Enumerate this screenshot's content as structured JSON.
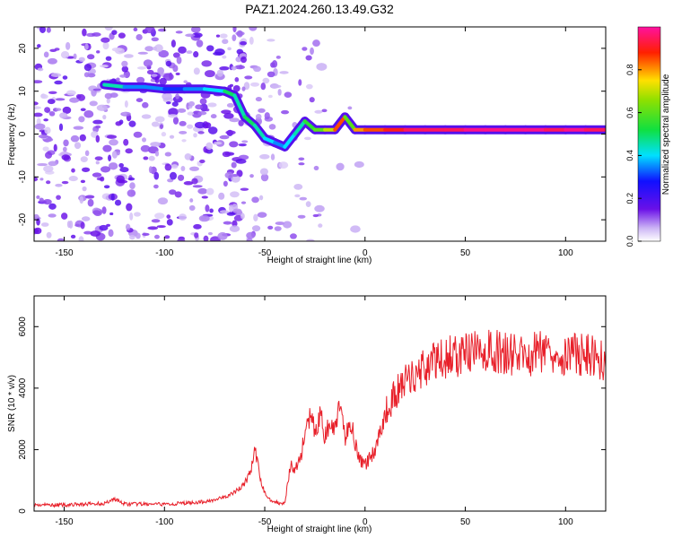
{
  "title": "PAZ1.2024.260.13.49.G32",
  "chart_data": [
    {
      "type": "heatmap",
      "title": "PAZ1.2024.260.13.49.G32",
      "xlabel": "Height of straight line (km)",
      "ylabel": "Frequency (Hz)",
      "xlim": [
        -165,
        120
      ],
      "ylim": [
        -25,
        25
      ],
      "x_ticks": [
        "-150",
        "-100",
        "-50",
        "0",
        "50",
        "100"
      ],
      "y_ticks": [
        "-20",
        "-10",
        "0",
        "10",
        "20"
      ],
      "colorbar": {
        "label": "Normalized spectral amplitude",
        "range": [
          0,
          1
        ],
        "ticks": [
          "0.0",
          "0.2",
          "0.4",
          "0.6",
          "0.8"
        ]
      },
      "ridge": {
        "x": [
          -130,
          -120,
          -110,
          -100,
          -90,
          -80,
          -70,
          -65,
          -60,
          -55,
          -50,
          -45,
          -40,
          -35,
          -30,
          -25,
          -20,
          -15,
          -10,
          -5,
          0,
          10,
          20,
          30,
          40,
          50,
          60,
          70,
          80,
          90,
          100,
          110,
          120
        ],
        "y": [
          11.5,
          11,
          11,
          10.5,
          10.5,
          10.5,
          10,
          9,
          4,
          2,
          -1,
          -2,
          -3,
          0,
          3,
          1,
          1,
          1,
          4,
          1,
          1,
          1,
          1,
          1,
          1,
          1,
          1,
          1,
          1,
          1,
          1,
          1,
          1
        ],
        "amplitude": [
          0.45,
          0.35,
          0.35,
          0.3,
          0.35,
          0.4,
          0.5,
          0.45,
          0.5,
          0.45,
          0.4,
          0.35,
          0.4,
          0.45,
          0.55,
          0.6,
          0.7,
          0.85,
          0.6,
          0.8,
          0.85,
          0.9,
          0.95,
          0.95,
          0.95,
          0.98,
          0.98,
          0.98,
          0.98,
          0.95,
          0.98,
          0.95,
          0.9
        ]
      }
    },
    {
      "type": "line",
      "xlabel": "Height of straight line (km)",
      "ylabel": "SNR (10 * v/v)",
      "xlim": [
        -165,
        120
      ],
      "ylim": [
        0,
        7000
      ],
      "x_ticks": [
        "-150",
        "-100",
        "-50",
        "0",
        "50",
        "100"
      ],
      "y_ticks": [
        "0",
        "2000",
        "4000",
        "6000"
      ],
      "line_color": "#e8202a",
      "series": [
        {
          "x": [
            -165,
            -150,
            -130,
            -125,
            -120,
            -100,
            -80,
            -70,
            -65,
            -60,
            -57,
            -55,
            -52,
            -50,
            -48,
            -45,
            -42,
            -40,
            -37,
            -35,
            -32,
            -30,
            -28,
            -26,
            -24,
            -22,
            -20,
            -18,
            -16,
            -14,
            -12,
            -10,
            -8,
            -6,
            -4,
            -2,
            0,
            5,
            10,
            15,
            20,
            30,
            40,
            50,
            60,
            70,
            80,
            90,
            100,
            110,
            115,
            120
          ],
          "y": [
            200,
            200,
            250,
            400,
            230,
            220,
            300,
            450,
            600,
            900,
            1300,
            2000,
            1000,
            600,
            400,
            300,
            250,
            300,
            1500,
            1300,
            1800,
            2500,
            3000,
            2800,
            2600,
            3200,
            2400,
            2800,
            2600,
            3000,
            3400,
            2200,
            3000,
            2600,
            2000,
            1600,
            1500,
            2000,
            3200,
            3800,
            4200,
            4700,
            5000,
            5100,
            5200,
            5150,
            5000,
            5300,
            5100,
            5100,
            5000,
            4900
          ]
        }
      ]
    }
  ]
}
